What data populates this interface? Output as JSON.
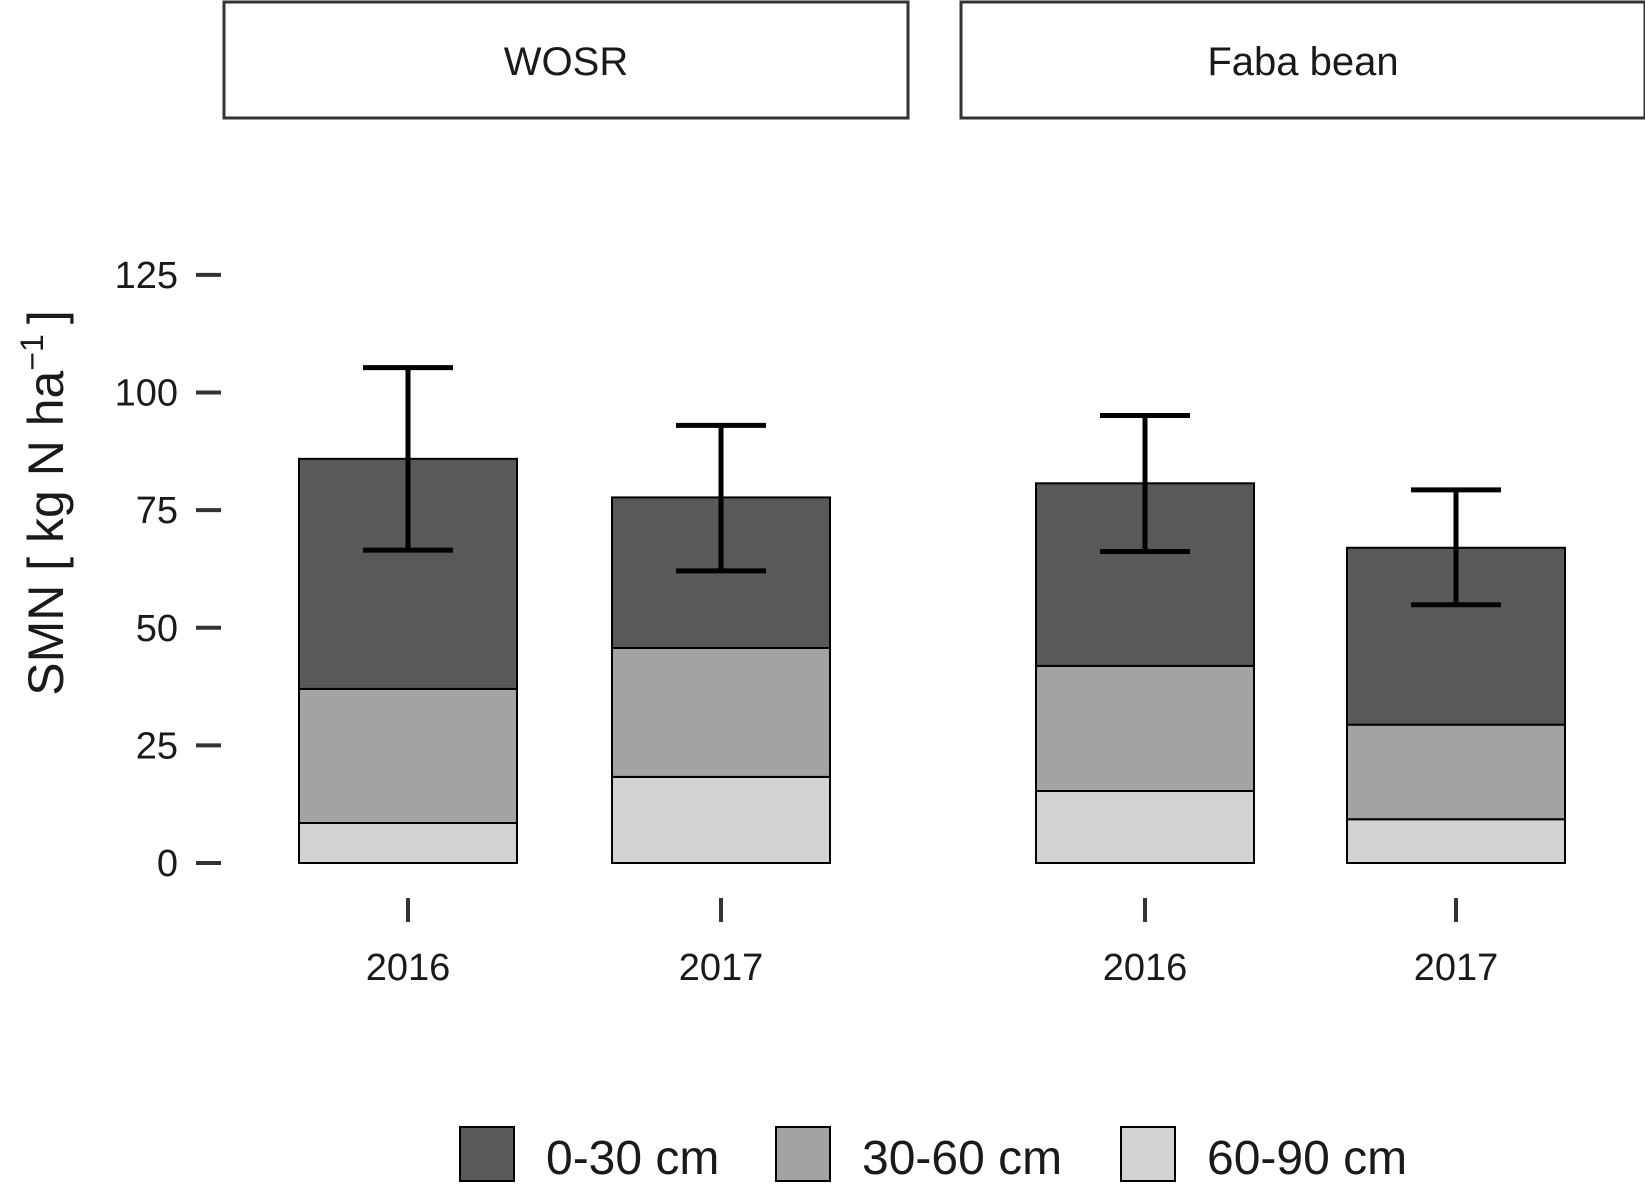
{
  "chart_data": {
    "type": "bar",
    "stacked": true,
    "ylabel": "SMN [ kg N ha",
    "ylabel_superscript": "−1",
    "ylabel_close": "]",
    "ylim": [
      0,
      125
    ],
    "yticks": [
      0,
      25,
      50,
      75,
      100,
      125
    ],
    "legend": {
      "position": "bottom"
    },
    "series": [
      {
        "name": "0-30 cm",
        "color": "#595959"
      },
      {
        "name": "30-60 cm",
        "color": "#a3a3a3"
      },
      {
        "name": "60-90 cm",
        "color": "#d3d3d3"
      }
    ],
    "panels": [
      {
        "title": "WOSR",
        "categories": [
          "2016",
          "2017"
        ],
        "values": {
          "0-30 cm": [
            48.9,
            32.0
          ],
          "30-60 cm": [
            28.5,
            27.4
          ],
          "60-90 cm": [
            8.5,
            18.3
          ]
        },
        "error": [
          {
            "low": 66.5,
            "high": 105.3
          },
          {
            "low": 62.1,
            "high": 93.0
          }
        ]
      },
      {
        "title": "Faba bean",
        "categories": [
          "2016",
          "2017"
        ],
        "values": {
          "0-30 cm": [
            38.8,
            37.6
          ],
          "30-60 cm": [
            26.6,
            20.1
          ],
          "60-90 cm": [
            15.3,
            9.3
          ]
        },
        "error": [
          {
            "low": 66.2,
            "high": 95.1
          },
          {
            "low": 54.9,
            "high": 79.3
          }
        ]
      }
    ]
  }
}
